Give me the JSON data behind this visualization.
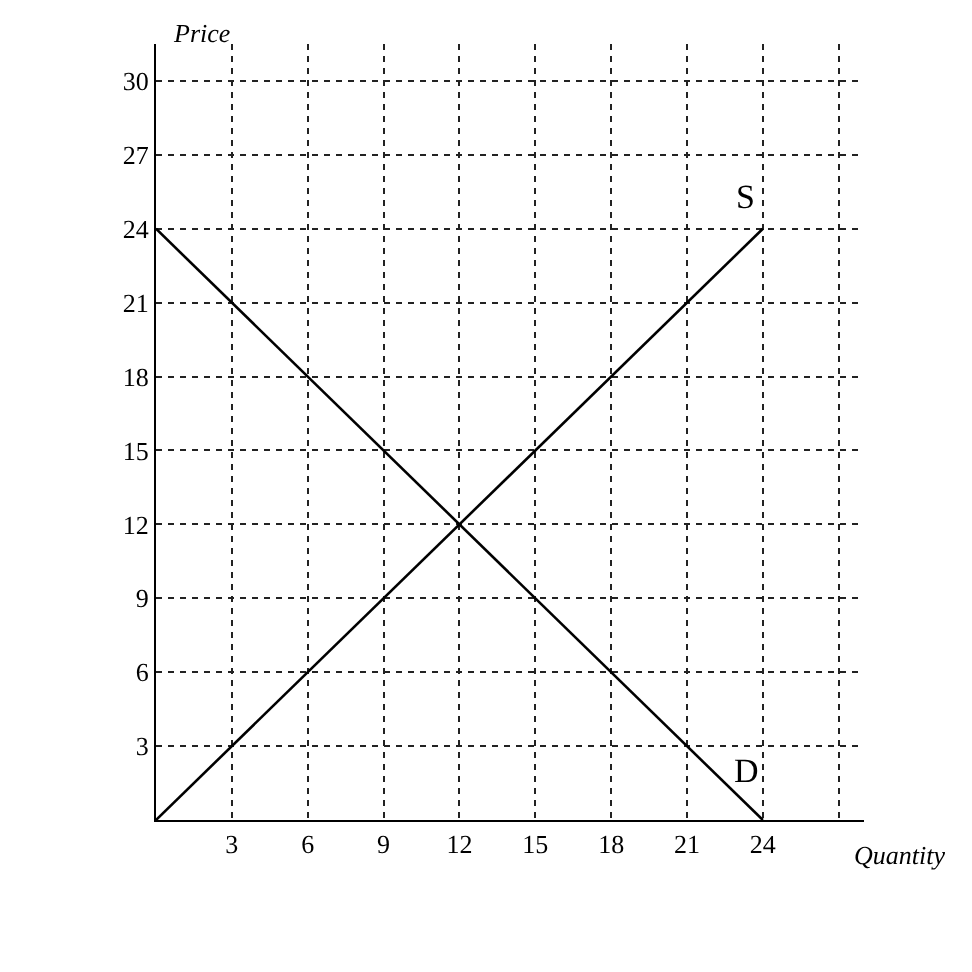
{
  "chart_data": {
    "type": "line",
    "xlabel": "Quantity",
    "ylabel": "Price",
    "x": [
      0,
      24
    ],
    "series": [
      {
        "name": "S",
        "color": "#000000",
        "values": [
          0,
          24
        ]
      },
      {
        "name": "D",
        "color": "#000000",
        "values": [
          24,
          0
        ]
      }
    ],
    "xlim": [
      0,
      28
    ],
    "xticks": [
      3,
      6,
      9,
      12,
      15,
      18,
      21,
      24,
      {
        "value": 27,
        "label": null
      }
    ],
    "ylim": [
      0,
      31.5
    ],
    "yticks": [
      3,
      6,
      9,
      12,
      15,
      18,
      21,
      24,
      27,
      30
    ],
    "grid": true,
    "legend": false,
    "marker": "none",
    "line_style": "solid"
  }
}
